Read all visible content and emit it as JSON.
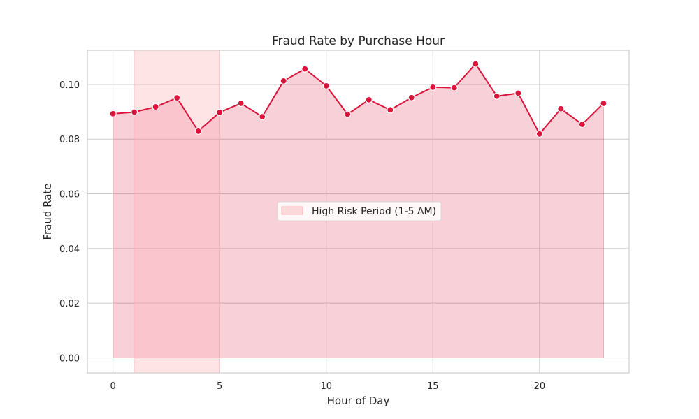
{
  "chart_data": {
    "type": "line",
    "title": "Fraud Rate by Purchase Hour",
    "xlabel": "Hour of Day",
    "ylabel": "Fraud Rate",
    "xlim": [
      -1.2,
      24.2
    ],
    "ylim": [
      -0.0055,
      0.1125
    ],
    "xticks": [
      0,
      5,
      10,
      15,
      20
    ],
    "xtick_labels": [
      "0",
      "5",
      "10",
      "15",
      "20"
    ],
    "yticks": [
      0.0,
      0.02,
      0.04,
      0.06,
      0.08,
      0.1
    ],
    "ytick_labels": [
      "0.00",
      "0.02",
      "0.04",
      "0.06",
      "0.08",
      "0.10"
    ],
    "grid": true,
    "series": [
      {
        "x": [
          0,
          1,
          2,
          3,
          4,
          5,
          6,
          7,
          8,
          9,
          10,
          11,
          12,
          13,
          14,
          15,
          16,
          17,
          18,
          19,
          20,
          21,
          22,
          23
        ],
        "values": [
          0.0893,
          0.0899,
          0.0918,
          0.0951,
          0.0829,
          0.0898,
          0.0931,
          0.0882,
          0.1013,
          0.1057,
          0.0995,
          0.0891,
          0.0944,
          0.0907,
          0.0952,
          0.099,
          0.0988,
          0.1075,
          0.0957,
          0.0968,
          0.0819,
          0.0911,
          0.0854,
          0.0931
        ],
        "color": "#dc143c",
        "fill": true
      }
    ],
    "shaded_region": {
      "x_start": 1,
      "x_end": 5,
      "label": "High Risk Period (1-5 AM)",
      "color": "#ffb3b8"
    },
    "legend": {
      "placement": "center",
      "entries": [
        "High Risk Period (1-5 AM)"
      ]
    }
  }
}
